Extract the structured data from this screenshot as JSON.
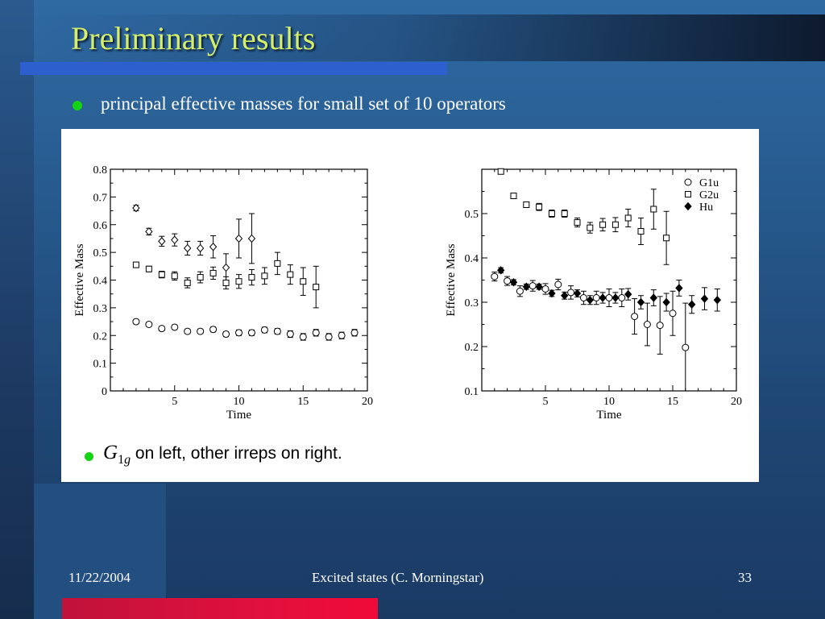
{
  "slide": {
    "title": "Preliminary results",
    "bullet": "principal effective masses for small set of 10 operators",
    "caption": {
      "symbol": "G",
      "subscript_num": "1",
      "subscript_letter": "g",
      "text": " on left, other irreps on right."
    },
    "footer": {
      "date": "11/22/2004",
      "center": "Excited states (C. Morningstar)",
      "page": "33"
    }
  },
  "chart_data": [
    {
      "type": "scatter",
      "xlabel": "Time",
      "ylabel": "Effective Mass",
      "xlim": [
        0,
        20
      ],
      "ylim": [
        0,
        0.8
      ],
      "xticks": [
        5,
        10,
        15,
        20
      ],
      "yticks": [
        0,
        0.1,
        0.2,
        0.3,
        0.4,
        0.5,
        0.6,
        0.7,
        0.8
      ],
      "ytick_labels": [
        "0",
        "0.1",
        "0.2",
        "0.3",
        "0.4",
        "0.5",
        "0.6",
        "0.7",
        "0.8"
      ],
      "legend": null,
      "series": [
        {
          "marker": "diamond-open",
          "points": [
            {
              "x": 2,
              "y": 0.66,
              "err": 0.01
            },
            {
              "x": 3,
              "y": 0.575,
              "err": 0.012
            },
            {
              "x": 4,
              "y": 0.54,
              "err": 0.018
            },
            {
              "x": 5,
              "y": 0.545,
              "err": 0.022
            },
            {
              "x": 6,
              "y": 0.515,
              "err": 0.025
            },
            {
              "x": 7,
              "y": 0.515,
              "err": 0.025
            },
            {
              "x": 8,
              "y": 0.52,
              "err": 0.04
            },
            {
              "x": 9,
              "y": 0.445,
              "err": 0.05
            },
            {
              "x": 10,
              "y": 0.55,
              "err": 0.07
            },
            {
              "x": 11,
              "y": 0.55,
              "err": 0.09
            }
          ]
        },
        {
          "marker": "square-open",
          "points": [
            {
              "x": 2,
              "y": 0.455,
              "err": 0.008
            },
            {
              "x": 3,
              "y": 0.44,
              "err": 0.01
            },
            {
              "x": 4,
              "y": 0.42,
              "err": 0.012
            },
            {
              "x": 5,
              "y": 0.415,
              "err": 0.015
            },
            {
              "x": 6,
              "y": 0.39,
              "err": 0.018
            },
            {
              "x": 7,
              "y": 0.41,
              "err": 0.02
            },
            {
              "x": 8,
              "y": 0.425,
              "err": 0.022
            },
            {
              "x": 9,
              "y": 0.39,
              "err": 0.022
            },
            {
              "x": 10,
              "y": 0.395,
              "err": 0.025
            },
            {
              "x": 11,
              "y": 0.41,
              "err": 0.028
            },
            {
              "x": 12,
              "y": 0.415,
              "err": 0.03
            },
            {
              "x": 13,
              "y": 0.46,
              "err": 0.04
            },
            {
              "x": 14,
              "y": 0.42,
              "err": 0.035
            },
            {
              "x": 15,
              "y": 0.395,
              "err": 0.05
            },
            {
              "x": 16,
              "y": 0.375,
              "err": 0.075
            }
          ]
        },
        {
          "marker": "circle-open",
          "points": [
            {
              "x": 2,
              "y": 0.25,
              "err": 0.008
            },
            {
              "x": 3,
              "y": 0.24,
              "err": 0.008
            },
            {
              "x": 4,
              "y": 0.225,
              "err": 0.008
            },
            {
              "x": 5,
              "y": 0.23,
              "err": 0.008
            },
            {
              "x": 6,
              "y": 0.215,
              "err": 0.008
            },
            {
              "x": 7,
              "y": 0.215,
              "err": 0.008
            },
            {
              "x": 8,
              "y": 0.222,
              "err": 0.009
            },
            {
              "x": 9,
              "y": 0.205,
              "err": 0.009
            },
            {
              "x": 10,
              "y": 0.21,
              "err": 0.01
            },
            {
              "x": 11,
              "y": 0.21,
              "err": 0.01
            },
            {
              "x": 12,
              "y": 0.22,
              "err": 0.01
            },
            {
              "x": 13,
              "y": 0.215,
              "err": 0.01
            },
            {
              "x": 14,
              "y": 0.205,
              "err": 0.012
            },
            {
              "x": 15,
              "y": 0.195,
              "err": 0.012
            },
            {
              "x": 16,
              "y": 0.21,
              "err": 0.012
            },
            {
              "x": 17,
              "y": 0.195,
              "err": 0.012
            },
            {
              "x": 18,
              "y": 0.2,
              "err": 0.012
            },
            {
              "x": 19,
              "y": 0.21,
              "err": 0.012
            }
          ]
        }
      ]
    },
    {
      "type": "scatter",
      "xlabel": "Time",
      "ylabel": "Effective Mass",
      "xlim": [
        0,
        20
      ],
      "ylim": [
        0.1,
        0.6
      ],
      "xticks": [
        5,
        10,
        15,
        20
      ],
      "yticks": [
        0.1,
        0.2,
        0.3,
        0.4,
        0.5
      ],
      "ytick_labels": [
        "0.1",
        "0.2",
        "0.3",
        "0.4",
        "0.5"
      ],
      "legend": "top-right",
      "series": [
        {
          "name": "G1u",
          "marker": "circle-open",
          "points": [
            {
              "x": 1,
              "y": 0.358,
              "err": 0.01
            },
            {
              "x": 2,
              "y": 0.348,
              "err": 0.01
            },
            {
              "x": 3,
              "y": 0.325,
              "err": 0.012
            },
            {
              "x": 4,
              "y": 0.337,
              "err": 0.012
            },
            {
              "x": 5,
              "y": 0.33,
              "err": 0.012
            },
            {
              "x": 6,
              "y": 0.34,
              "err": 0.012
            },
            {
              "x": 7,
              "y": 0.322,
              "err": 0.015
            },
            {
              "x": 8,
              "y": 0.31,
              "err": 0.015
            },
            {
              "x": 9,
              "y": 0.31,
              "err": 0.015
            },
            {
              "x": 10,
              "y": 0.31,
              "err": 0.02
            },
            {
              "x": 11,
              "y": 0.31,
              "err": 0.02
            },
            {
              "x": 12,
              "y": 0.268,
              "err": 0.04
            },
            {
              "x": 13,
              "y": 0.25,
              "err": 0.048
            },
            {
              "x": 14,
              "y": 0.248,
              "err": 0.065
            },
            {
              "x": 15,
              "y": 0.275,
              "err": 0.05
            },
            {
              "x": 16,
              "y": 0.198,
              "err": 0.1
            }
          ]
        },
        {
          "name": "G2u",
          "marker": "square-open",
          "points": [
            {
              "x": 1.5,
              "y": 0.595,
              "err": 0.005
            },
            {
              "x": 2.5,
              "y": 0.54,
              "err": 0.005
            },
            {
              "x": 3.5,
              "y": 0.52,
              "err": 0.006
            },
            {
              "x": 4.5,
              "y": 0.515,
              "err": 0.008
            },
            {
              "x": 5.5,
              "y": 0.5,
              "err": 0.008
            },
            {
              "x": 6.5,
              "y": 0.5,
              "err": 0.008
            },
            {
              "x": 7.5,
              "y": 0.48,
              "err": 0.01
            },
            {
              "x": 8.5,
              "y": 0.468,
              "err": 0.012
            },
            {
              "x": 9.5,
              "y": 0.475,
              "err": 0.014
            },
            {
              "x": 10.5,
              "y": 0.475,
              "err": 0.016
            },
            {
              "x": 11.5,
              "y": 0.49,
              "err": 0.02
            },
            {
              "x": 12.5,
              "y": 0.46,
              "err": 0.03
            },
            {
              "x": 13.5,
              "y": 0.51,
              "err": 0.045
            },
            {
              "x": 14.5,
              "y": 0.445,
              "err": 0.06
            }
          ]
        },
        {
          "name": "Hu",
          "marker": "diamond-filled",
          "points": [
            {
              "x": 1.5,
              "y": 0.372,
              "err": 0.006
            },
            {
              "x": 2.5,
              "y": 0.345,
              "err": 0.006
            },
            {
              "x": 3.5,
              "y": 0.335,
              "err": 0.006
            },
            {
              "x": 4.5,
              "y": 0.335,
              "err": 0.006
            },
            {
              "x": 5.5,
              "y": 0.32,
              "err": 0.007
            },
            {
              "x": 6.5,
              "y": 0.315,
              "err": 0.008
            },
            {
              "x": 7.5,
              "y": 0.32,
              "err": 0.008
            },
            {
              "x": 8.5,
              "y": 0.305,
              "err": 0.01
            },
            {
              "x": 9.5,
              "y": 0.31,
              "err": 0.012
            },
            {
              "x": 10.5,
              "y": 0.31,
              "err": 0.012
            },
            {
              "x": 11.5,
              "y": 0.318,
              "err": 0.013
            },
            {
              "x": 12.5,
              "y": 0.3,
              "err": 0.015
            },
            {
              "x": 13.5,
              "y": 0.31,
              "err": 0.018
            },
            {
              "x": 14.5,
              "y": 0.3,
              "err": 0.02
            },
            {
              "x": 15.5,
              "y": 0.332,
              "err": 0.018
            },
            {
              "x": 16.5,
              "y": 0.295,
              "err": 0.02
            },
            {
              "x": 17.5,
              "y": 0.308,
              "err": 0.025
            },
            {
              "x": 18.5,
              "y": 0.305,
              "err": 0.025
            }
          ]
        }
      ]
    }
  ]
}
